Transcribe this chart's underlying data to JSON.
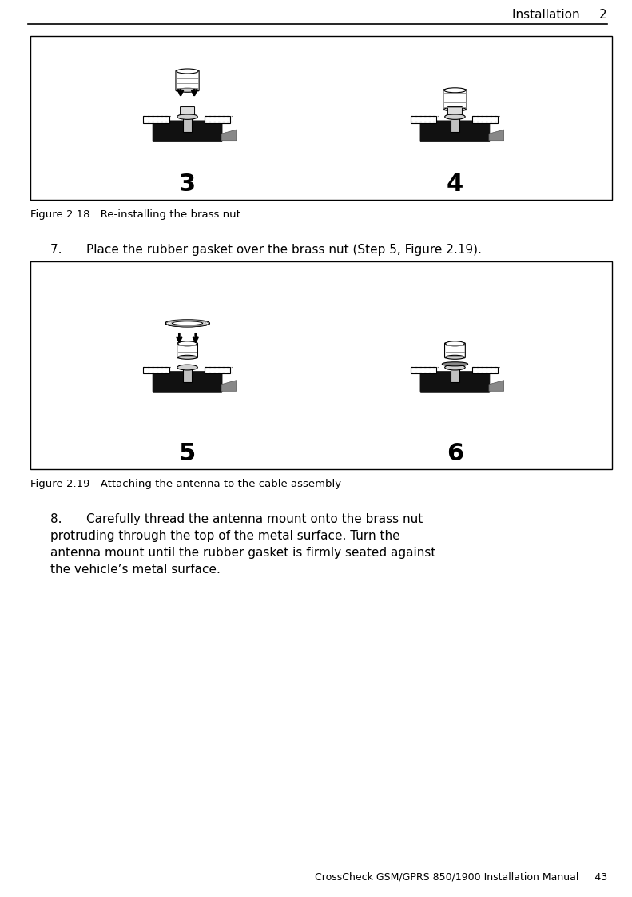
{
  "page_width": 7.91,
  "page_height": 11.22,
  "bg_color": "#ffffff",
  "header_text": "Installation",
  "header_chapter": "2",
  "footer_text": "CrossCheck GSM/GPRS 850/1900 Installation Manual",
  "footer_page": "43",
  "fig218_caption": "Figure 2.18 Re-installing the brass nut",
  "fig219_caption": "Figure 2.19 Attaching the antenna to the cable assembly",
  "step7_text": "7.  Place the rubber gasket over the brass nut (Step 5, Figure 2.19).",
  "step8_text": "8.  Carefully thread the antenna mount onto the brass nut\nprotruding through the top of the metal surface. Turn the\nantenna mount until the rubber gasket is firmly seated against\nthe vehicle’s metal surface.",
  "label3": "3",
  "label4": "4",
  "label5": "5",
  "label6": "6"
}
